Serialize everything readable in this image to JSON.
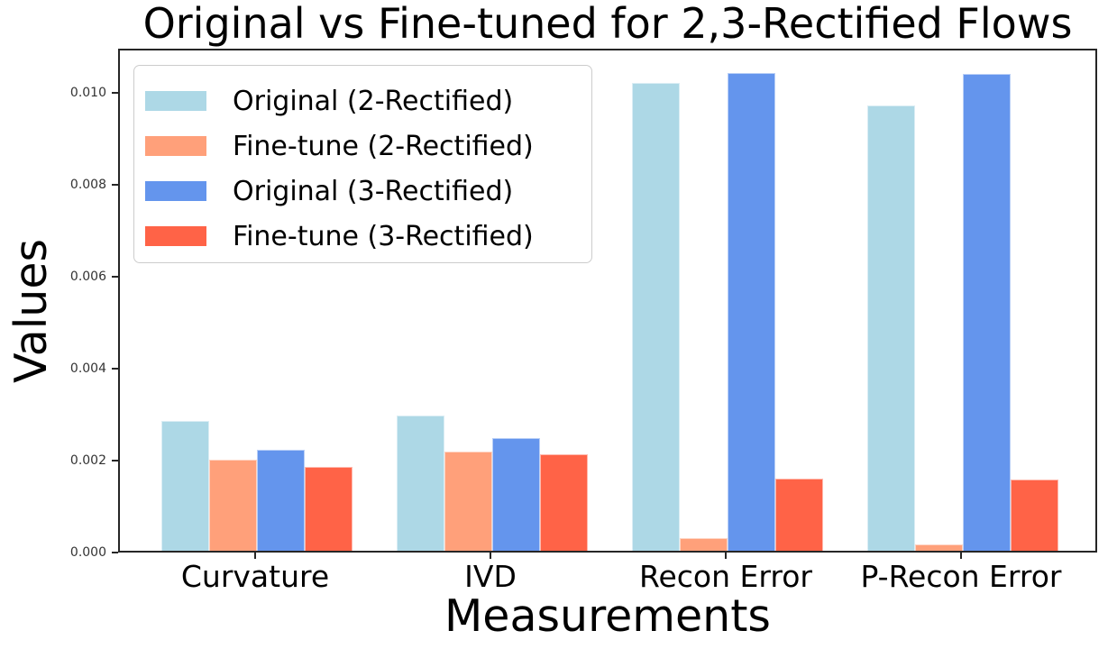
{
  "chart_data": {
    "type": "bar",
    "title": "Original vs Fine-tuned for 2,3-Rectified Flows",
    "xlabel": "Measurements",
    "ylabel": "Values",
    "categories": [
      "Curvature",
      "IVD",
      "Recon Error",
      "P-Recon Error"
    ],
    "series": [
      {
        "name": "Original (2-Rectified)",
        "color": "#ADD8E6",
        "values": [
          0.00283,
          0.00295,
          0.01018,
          0.00969
        ]
      },
      {
        "name": "Fine-tune (2-Rectified)",
        "color": "#FFA07A",
        "values": [
          0.00198,
          0.00215,
          0.00027,
          0.00013
        ]
      },
      {
        "name": "Original (3-Rectified)",
        "color": "#6495ED",
        "values": [
          0.0022,
          0.00246,
          0.01039,
          0.01037
        ]
      },
      {
        "name": "Fine-tune (3-Rectified)",
        "color": "#FF6347",
        "values": [
          0.00182,
          0.00209,
          0.00157,
          0.00155
        ]
      }
    ],
    "ylim": [
      0,
      0.01096
    ],
    "yticks": [
      0,
      0.002,
      0.004,
      0.006,
      0.008,
      0.01
    ],
    "ytick_labels": [
      "0.000",
      "0.002",
      "0.004",
      "0.006",
      "0.008",
      "0.010"
    ],
    "legend_position": "upper left",
    "grid": false
  }
}
